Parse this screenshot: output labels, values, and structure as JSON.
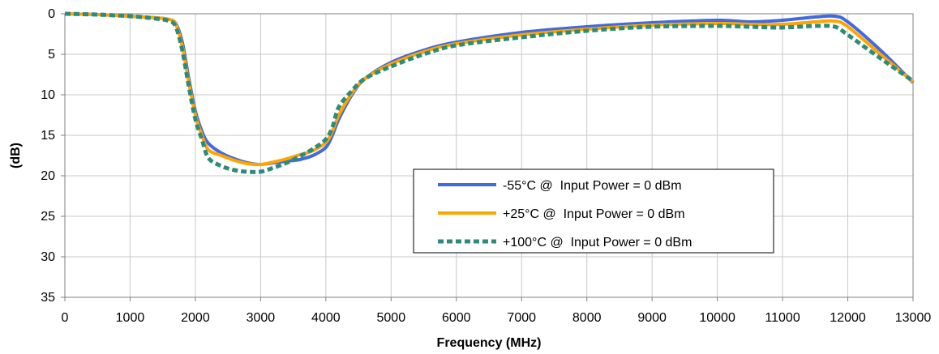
{
  "chart_data": {
    "type": "line",
    "title": "",
    "xlabel": "Frequency (MHz)",
    "ylabel": "(dB)",
    "xlim": [
      0,
      13000
    ],
    "ylim": [
      0,
      35
    ],
    "y_inverted": true,
    "grid": true,
    "legend_position": "center-right",
    "x_ticks": [
      "0",
      "1000",
      "2000",
      "3000",
      "4000",
      "5000",
      "6000",
      "7000",
      "8000",
      "9000",
      "10000",
      "11000",
      "12000",
      "13000"
    ],
    "y_ticks": [
      "0",
      "5",
      "10",
      "15",
      "20",
      "25",
      "30",
      "35"
    ],
    "series": [
      {
        "name": "-55°C @  Input Power = 0 dBm",
        "color": "#4169E1",
        "style": "solid",
        "x": [
          0,
          500,
          1000,
          1400,
          1600,
          1700,
          1800,
          1900,
          2000,
          2100,
          2200,
          2400,
          2600,
          2800,
          3000,
          3200,
          3400,
          3600,
          3800,
          4000,
          4100,
          4200,
          4400,
          4600,
          5000,
          5500,
          6000,
          7000,
          8000,
          9000,
          10000,
          10500,
          11000,
          11500,
          11800,
          12000,
          12500,
          13000
        ],
        "y": [
          0.0,
          0.1,
          0.3,
          0.5,
          0.7,
          1.2,
          3.5,
          8.0,
          12.0,
          14.5,
          16.0,
          17.2,
          17.9,
          18.4,
          18.6,
          18.4,
          18.2,
          18.0,
          17.5,
          16.5,
          15.0,
          13.0,
          10.0,
          8.0,
          6.0,
          4.5,
          3.5,
          2.3,
          1.6,
          1.1,
          0.8,
          1.0,
          0.8,
          0.4,
          0.3,
          1.0,
          4.5,
          8.5
        ]
      },
      {
        "name": "+25°C @  Input Power = 0 dBm",
        "color": "#FFA500",
        "style": "solid",
        "x": [
          0,
          500,
          1000,
          1400,
          1600,
          1700,
          1800,
          1900,
          2000,
          2100,
          2200,
          2400,
          2600,
          2800,
          3000,
          3200,
          3400,
          3600,
          3800,
          4000,
          4100,
          4200,
          4400,
          4600,
          5000,
          5500,
          6000,
          7000,
          8000,
          9000,
          10000,
          10500,
          11000,
          11500,
          11800,
          12000,
          12500,
          13000
        ],
        "y": [
          0.0,
          0.1,
          0.3,
          0.5,
          0.7,
          1.3,
          4.0,
          8.5,
          12.5,
          15.0,
          16.8,
          17.5,
          18.1,
          18.5,
          18.6,
          18.3,
          17.9,
          17.4,
          16.9,
          15.9,
          14.5,
          12.5,
          9.8,
          8.0,
          6.2,
          4.7,
          3.7,
          2.6,
          1.9,
          1.4,
          1.2,
          1.3,
          1.3,
          1.0,
          0.9,
          1.6,
          5.0,
          8.4
        ]
      },
      {
        "name": "+100°C @  Input Power = 0 dBm",
        "color": "#2E8B7A",
        "style": "dashed",
        "x": [
          0,
          500,
          1000,
          1400,
          1600,
          1700,
          1800,
          1900,
          2000,
          2100,
          2200,
          2400,
          2600,
          2800,
          3000,
          3200,
          3400,
          3600,
          3800,
          4000,
          4100,
          4200,
          4400,
          4600,
          5000,
          5500,
          6000,
          7000,
          8000,
          9000,
          10000,
          10500,
          11000,
          11500,
          11800,
          12000,
          12500,
          13000
        ],
        "y": [
          0.0,
          0.1,
          0.3,
          0.6,
          0.9,
          1.6,
          4.5,
          9.0,
          13.0,
          15.5,
          17.8,
          18.8,
          19.3,
          19.5,
          19.5,
          19.0,
          18.4,
          17.6,
          16.7,
          15.5,
          14.0,
          11.5,
          9.5,
          8.0,
          6.5,
          5.0,
          3.9,
          2.9,
          2.1,
          1.6,
          1.5,
          1.6,
          1.7,
          1.5,
          1.6,
          2.6,
          5.5,
          8.3
        ]
      }
    ]
  }
}
